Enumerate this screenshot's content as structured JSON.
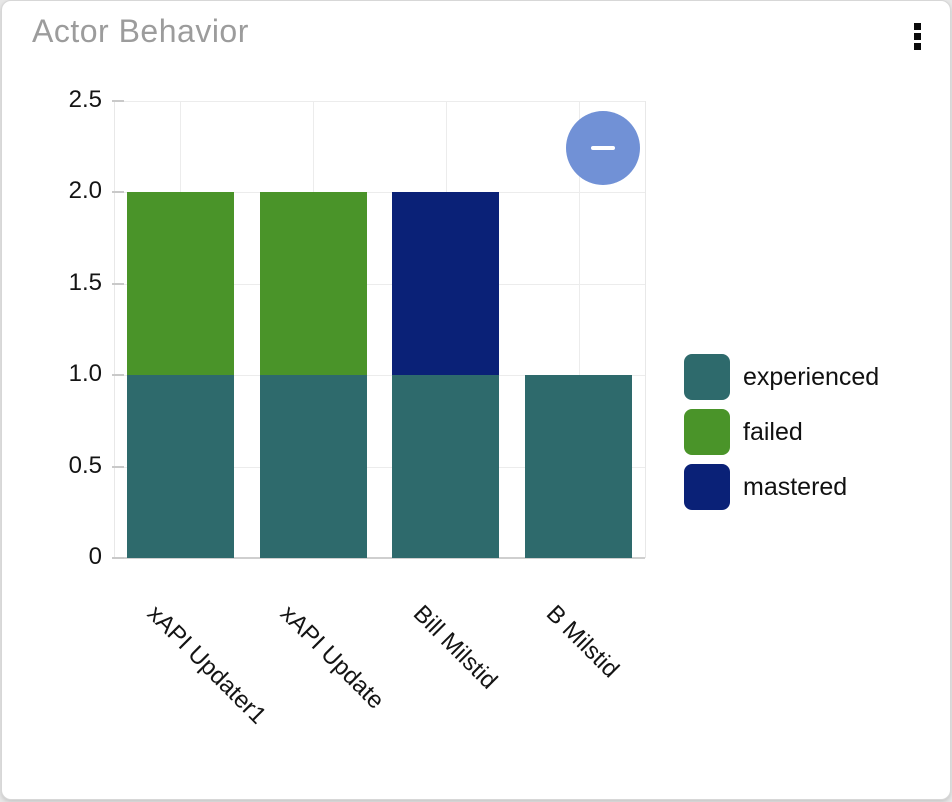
{
  "card": {
    "title": "Actor Behavior",
    "menu_icon": "kebab-vertical-icon"
  },
  "controls": {
    "zoom_out_icon": "minus-icon"
  },
  "chart_data": {
    "type": "bar",
    "stacked": true,
    "title": "Actor Behavior",
    "categories": [
      "xAPI Updater1",
      "xAPI Update",
      "Bill Milstid",
      "B Milstid"
    ],
    "series": [
      {
        "name": "experienced",
        "color": "#2e6a6c",
        "values": [
          1,
          1,
          1,
          1
        ]
      },
      {
        "name": "failed",
        "color": "#4a9429",
        "values": [
          1,
          1,
          0,
          0
        ]
      },
      {
        "name": "mastered",
        "color": "#0a2177",
        "values": [
          0,
          0,
          1,
          0
        ]
      }
    ],
    "ylim": [
      0,
      2.5
    ],
    "yticks": {
      "values": [
        0,
        0.5,
        1,
        1.5,
        2,
        2.5
      ],
      "labels": [
        "0",
        "0.5",
        "1.0",
        "1.5",
        "2.0",
        "2.5"
      ]
    },
    "grid": true,
    "legend_position": "right",
    "xlabel_rotation_deg": 45
  }
}
